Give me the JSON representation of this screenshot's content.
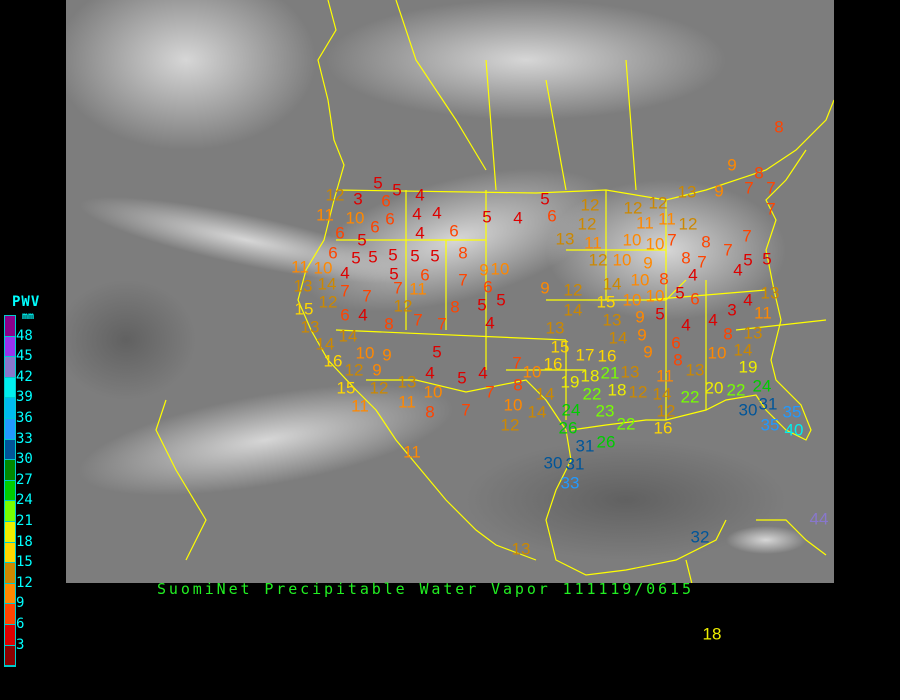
{
  "caption": "SuomiNet Precipitable Water Vapor 111119/0615",
  "legend": {
    "title": "PWV",
    "unit": "mm",
    "labels": [
      "48",
      "45",
      "42",
      "39",
      "36",
      "33",
      "30",
      "27",
      "24",
      "21",
      "18",
      "15",
      "12",
      "9",
      "6",
      "3"
    ],
    "colors_top_to_bottom": [
      "#8b008b",
      "#9933ee",
      "#8877cc",
      "#00eeee",
      "#00bbee",
      "#2299ff",
      "#005599",
      "#008800",
      "#00cc00",
      "#77ff00",
      "#eeee00",
      "#ffd700",
      "#cc8800",
      "#ff8800",
      "#ff4400",
      "#dd0000",
      "#8b0000"
    ]
  },
  "map": {
    "background": "#7d7d7d",
    "border_color": "#ffff00",
    "station_values": [
      5,
      5,
      12,
      3,
      6,
      4,
      11,
      10,
      6,
      4,
      4,
      5,
      4,
      5,
      6,
      6,
      6,
      4,
      6,
      5,
      5,
      5,
      6,
      5,
      5,
      5,
      8,
      11,
      10,
      4,
      5,
      6,
      10,
      9,
      7,
      6,
      13,
      14,
      7,
      7,
      7,
      11,
      9,
      12,
      5,
      5,
      15,
      12,
      8,
      6,
      4,
      8,
      7,
      7,
      4,
      13,
      14,
      14,
      5,
      16,
      10,
      9,
      12,
      9,
      4,
      13,
      5,
      4,
      7,
      10,
      16,
      15,
      12,
      10,
      7,
      8,
      11,
      11,
      14,
      8,
      7,
      10,
      14,
      12,
      11,
      9,
      8,
      7,
      7,
      13,
      9,
      7,
      12,
      12,
      12,
      12,
      11,
      11,
      12,
      8,
      7,
      13,
      11,
      10,
      10,
      7,
      8,
      7,
      12,
      10,
      7,
      5,
      5,
      9,
      4,
      4,
      10,
      8,
      12,
      14,
      10,
      5,
      6,
      13,
      14,
      15,
      10,
      4,
      5,
      3,
      11,
      13,
      13,
      9,
      4,
      14,
      9,
      4,
      8,
      13,
      6,
      15,
      16,
      17,
      9,
      8,
      10,
      14,
      21,
      13,
      11,
      13,
      19,
      19,
      18,
      18,
      12,
      14,
      20,
      22,
      24,
      22,
      22,
      31,
      24,
      23,
      12,
      30,
      35,
      26,
      22,
      35,
      40,
      16,
      26,
      31,
      30,
      31,
      33,
      8,
      44,
      13,
      18,
      32
    ]
  }
}
